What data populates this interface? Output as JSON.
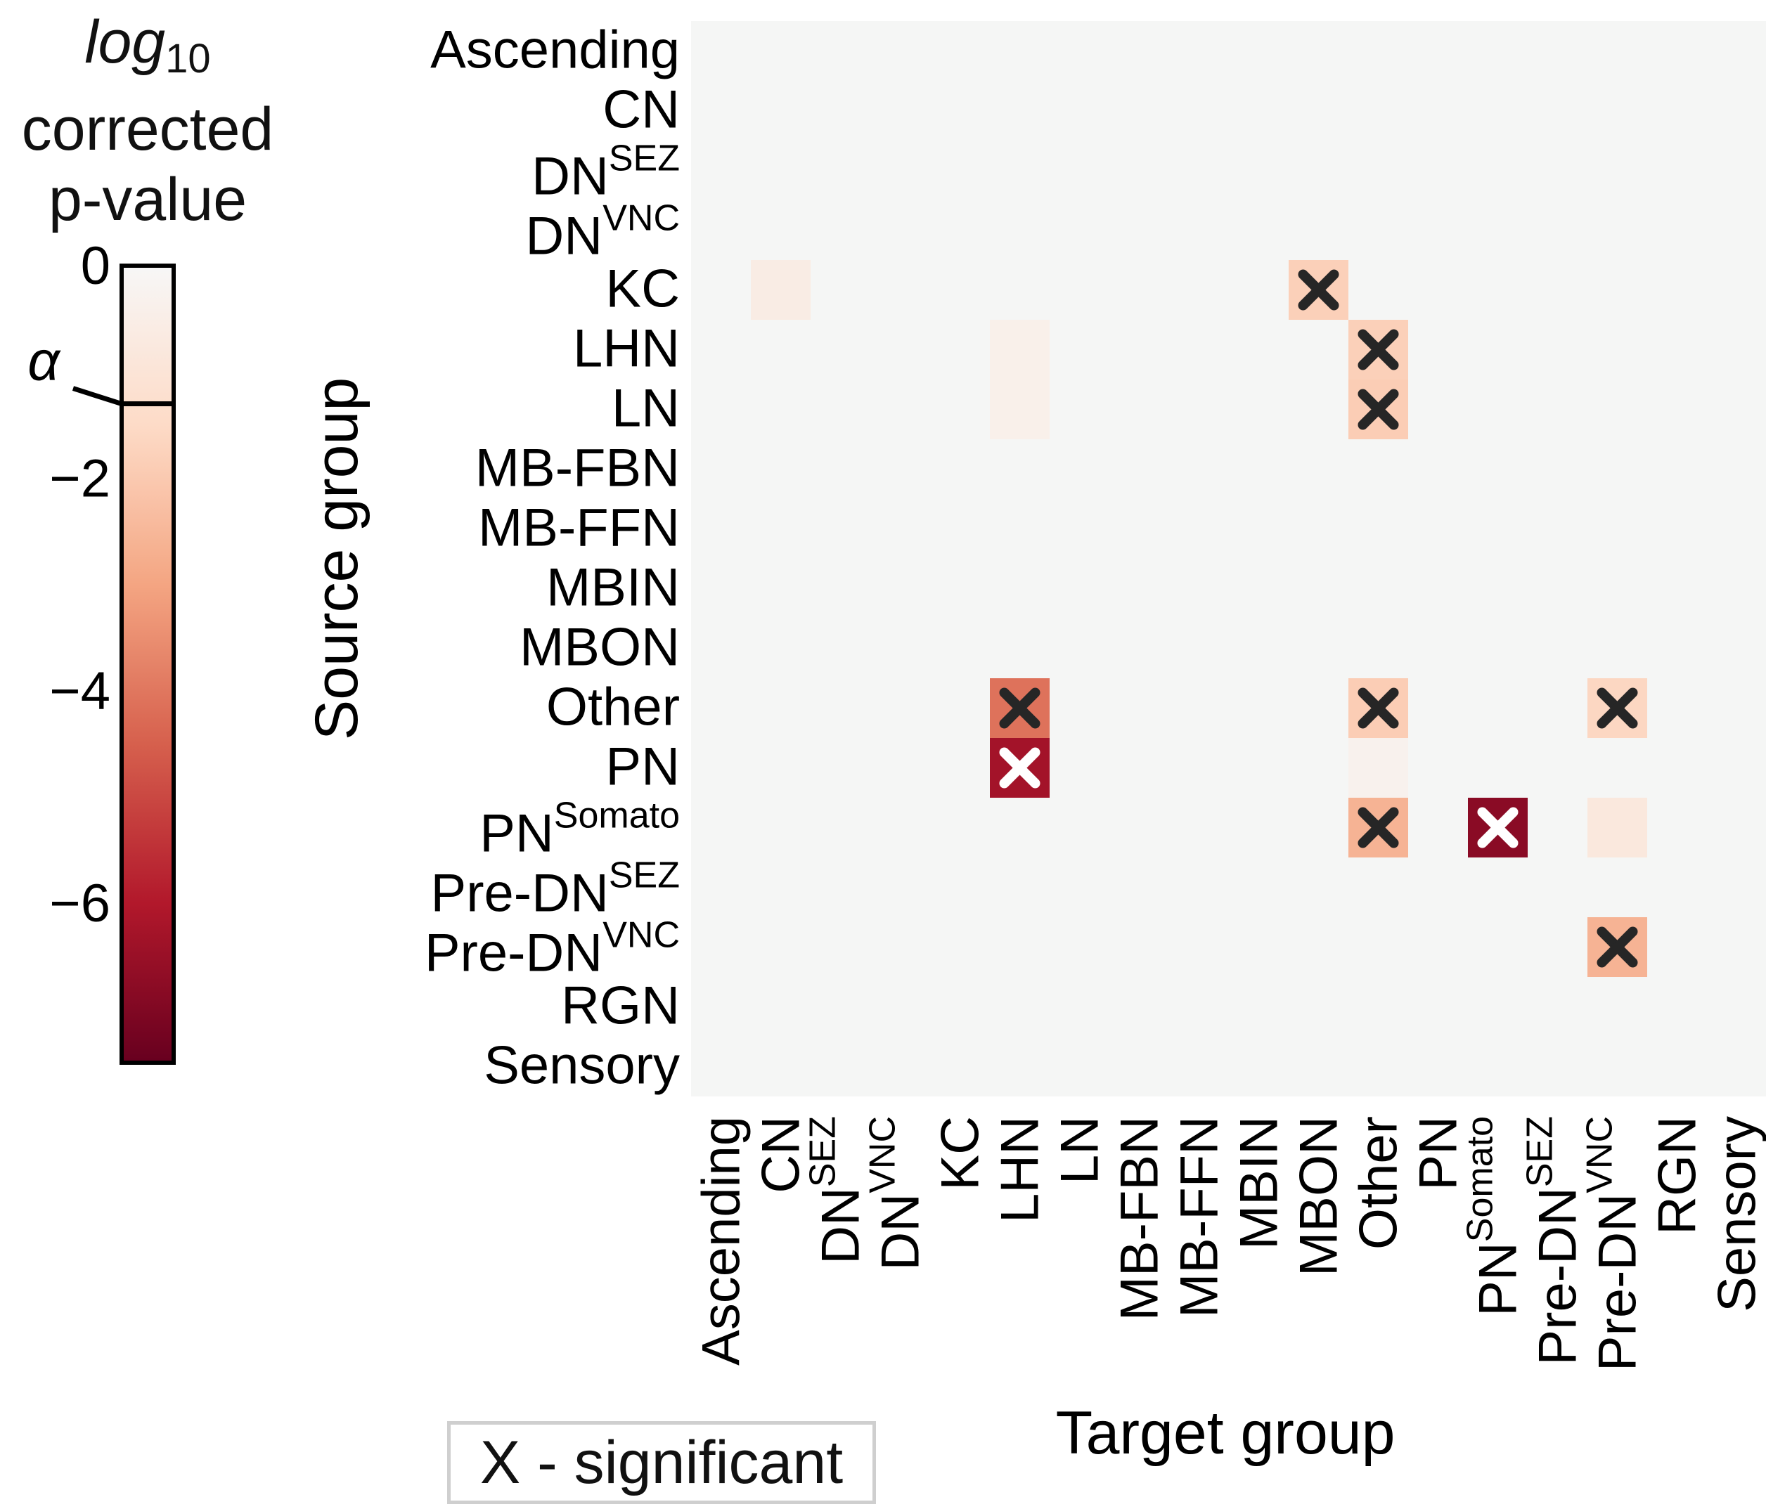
{
  "colorbar": {
    "title_log": "log",
    "title_sub": "10",
    "title_line2": "corrected",
    "title_line3": "p-value",
    "alpha_label": "α",
    "alpha_value": -1.3,
    "ticks": [
      {
        "value": 0,
        "label": "0"
      },
      {
        "value": -2,
        "label": "−2"
      },
      {
        "value": -4,
        "label": "−4"
      },
      {
        "value": -6,
        "label": "−6"
      }
    ],
    "range": [
      -7.5,
      0
    ],
    "colors": [
      "#67001f",
      "#b2182b",
      "#d6604d",
      "#f4a582",
      "#fddbc7",
      "#f7f7f7"
    ]
  },
  "legend": {
    "text": "X - significant"
  },
  "chart_data": {
    "type": "heatmap",
    "xlabel": "Target group",
    "ylabel": "Source group",
    "background_color": "#f5f6f5",
    "row_labels": [
      {
        "base": "Ascending",
        "sup": ""
      },
      {
        "base": "CN",
        "sup": ""
      },
      {
        "base": "DN",
        "sup": "SEZ"
      },
      {
        "base": "DN",
        "sup": "VNC"
      },
      {
        "base": "KC",
        "sup": ""
      },
      {
        "base": "LHN",
        "sup": ""
      },
      {
        "base": "LN",
        "sup": ""
      },
      {
        "base": "MB-FBN",
        "sup": ""
      },
      {
        "base": "MB-FFN",
        "sup": ""
      },
      {
        "base": "MBIN",
        "sup": ""
      },
      {
        "base": "MBON",
        "sup": ""
      },
      {
        "base": "Other",
        "sup": ""
      },
      {
        "base": "PN",
        "sup": ""
      },
      {
        "base": "PN",
        "sup": "Somato"
      },
      {
        "base": "Pre-DN",
        "sup": "SEZ"
      },
      {
        "base": "Pre-DN",
        "sup": "VNC"
      },
      {
        "base": "RGN",
        "sup": ""
      },
      {
        "base": "Sensory",
        "sup": ""
      }
    ],
    "col_labels": [
      {
        "base": "Ascending",
        "sup": ""
      },
      {
        "base": "CN",
        "sup": ""
      },
      {
        "base": "DN",
        "sup": "SEZ"
      },
      {
        "base": "DN",
        "sup": "VNC"
      },
      {
        "base": "KC",
        "sup": ""
      },
      {
        "base": "LHN",
        "sup": ""
      },
      {
        "base": "LN",
        "sup": ""
      },
      {
        "base": "MB-FBN",
        "sup": ""
      },
      {
        "base": "MB-FFN",
        "sup": ""
      },
      {
        "base": "MBIN",
        "sup": ""
      },
      {
        "base": "MBON",
        "sup": ""
      },
      {
        "base": "Other",
        "sup": ""
      },
      {
        "base": "PN",
        "sup": ""
      },
      {
        "base": "PN",
        "sup": "Somato"
      },
      {
        "base": "Pre-DN",
        "sup": "SEZ"
      },
      {
        "base": "Pre-DN",
        "sup": "VNC"
      },
      {
        "base": "RGN",
        "sup": ""
      },
      {
        "base": "Sensory",
        "sup": ""
      }
    ],
    "cells": [
      {
        "row": 4,
        "col": 1,
        "value": -0.6,
        "significant": false
      },
      {
        "row": 4,
        "col": 10,
        "value": -1.8,
        "significant": true
      },
      {
        "row": 5,
        "col": 5,
        "value": -0.4,
        "significant": false
      },
      {
        "row": 5,
        "col": 11,
        "value": -1.8,
        "significant": true
      },
      {
        "row": 6,
        "col": 5,
        "value": -0.4,
        "significant": false
      },
      {
        "row": 6,
        "col": 11,
        "value": -1.9,
        "significant": true
      },
      {
        "row": 11,
        "col": 5,
        "value": -4.1,
        "significant": true
      },
      {
        "row": 11,
        "col": 11,
        "value": -1.9,
        "significant": true
      },
      {
        "row": 11,
        "col": 15,
        "value": -1.6,
        "significant": true
      },
      {
        "row": 12,
        "col": 5,
        "value": -6.3,
        "significant": true
      },
      {
        "row": 12,
        "col": 11,
        "value": -0.3,
        "significant": false
      },
      {
        "row": 13,
        "col": 11,
        "value": -2.6,
        "significant": true
      },
      {
        "row": 13,
        "col": 13,
        "value": -6.8,
        "significant": true
      },
      {
        "row": 13,
        "col": 15,
        "value": -0.8,
        "significant": false
      },
      {
        "row": 15,
        "col": 15,
        "value": -2.6,
        "significant": true
      }
    ]
  }
}
